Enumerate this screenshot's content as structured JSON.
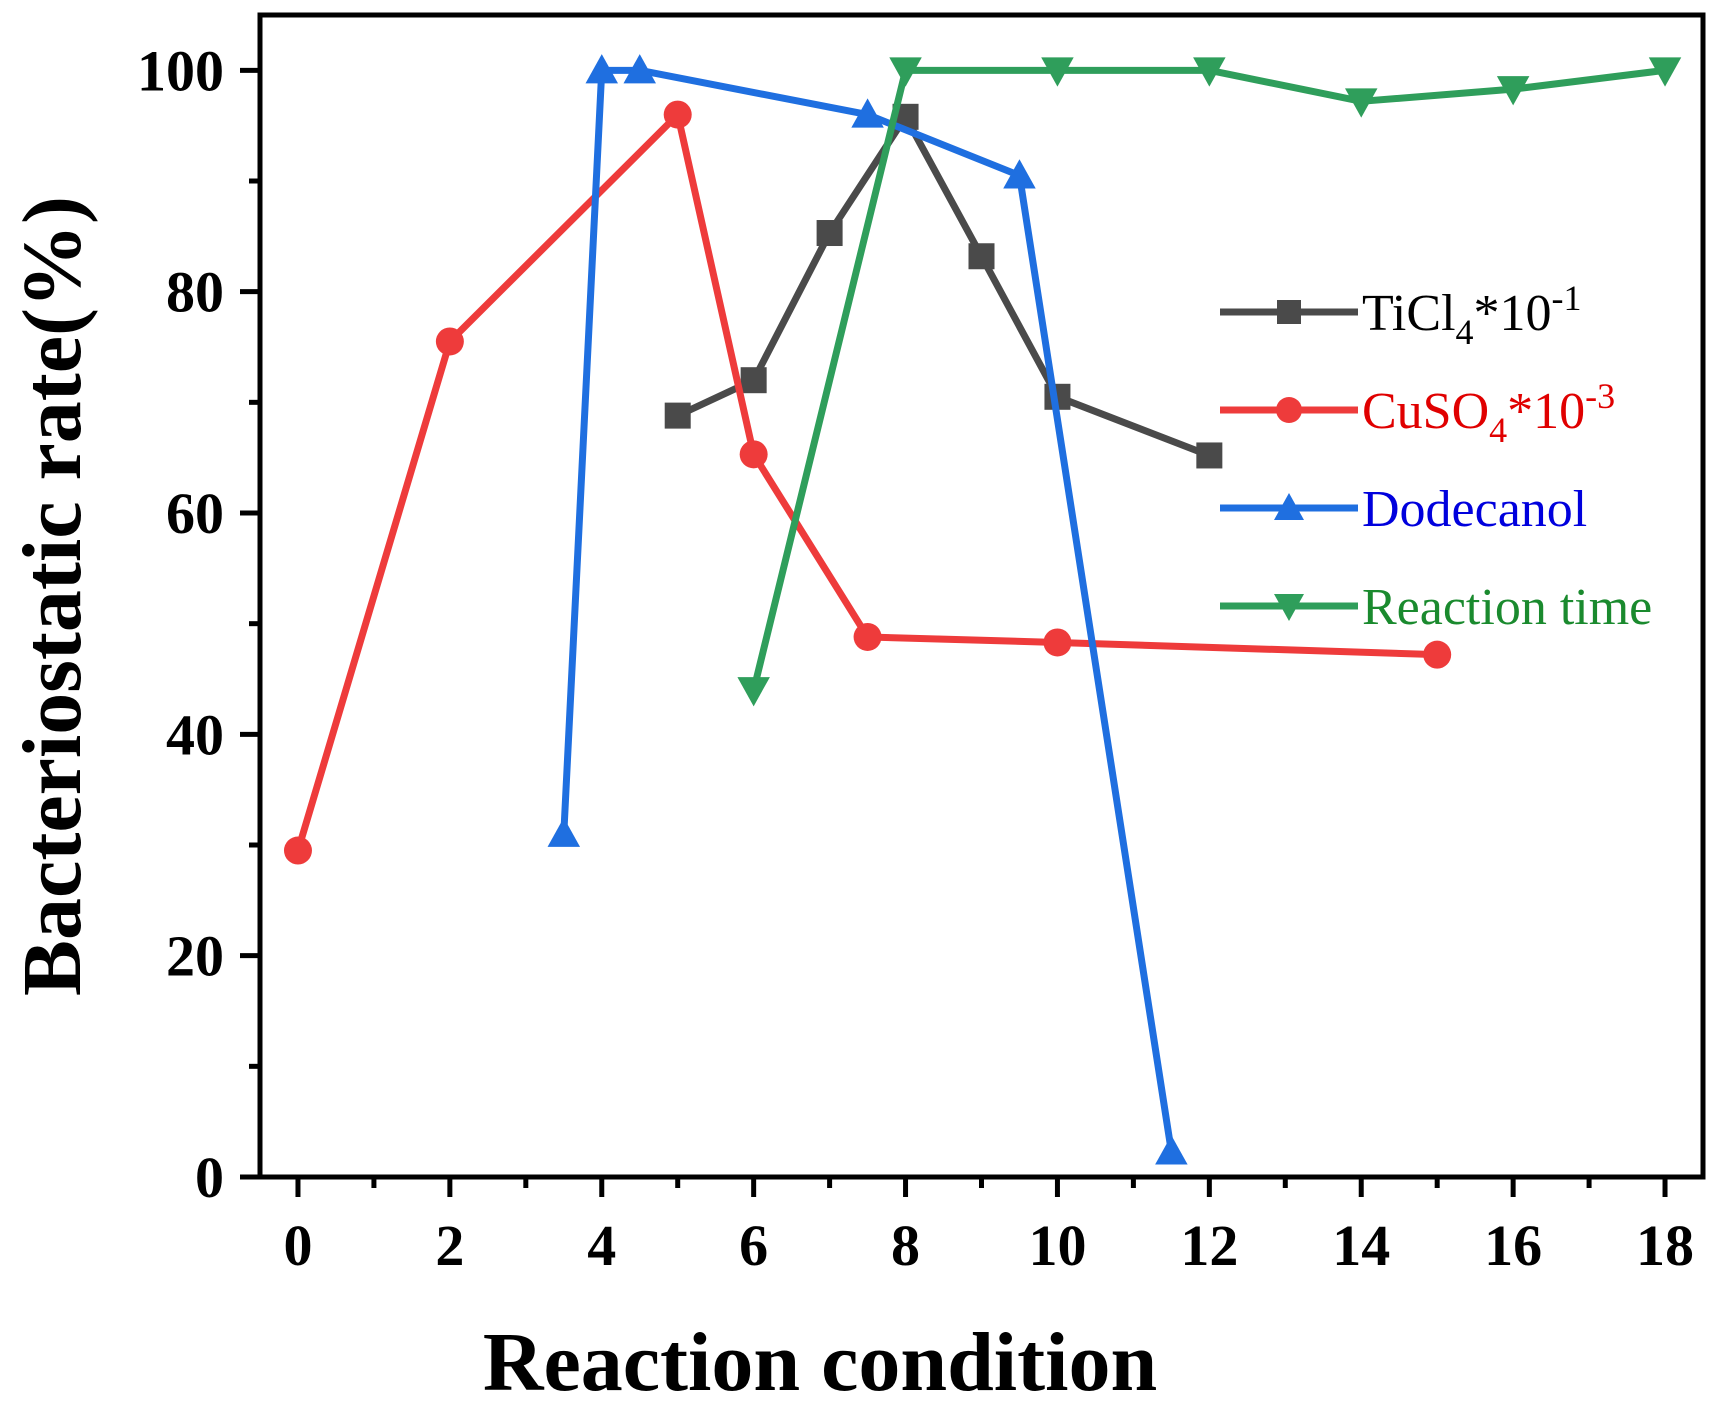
{
  "chart_data": {
    "type": "line",
    "xlabel": "Reaction condition",
    "ylabel": "Bacteriostatic rate(%)",
    "xlim": [
      -0.5,
      18.5
    ],
    "ylim": [
      0,
      105
    ],
    "xticks": [
      0,
      2,
      4,
      6,
      8,
      10,
      12,
      14,
      16,
      18
    ],
    "yticks": [
      0,
      20,
      40,
      60,
      80,
      100
    ],
    "grid": false,
    "legend_position": "right",
    "series": [
      {
        "name": "TiCl4*10-1",
        "legend": {
          "base": "TiCl",
          "sub": "4",
          "mid": "*10",
          "sup": "-1"
        },
        "color": "#4a4a4a",
        "marker": "square",
        "x": [
          5,
          6,
          7,
          8,
          9,
          10,
          12
        ],
        "y": [
          68.8,
          72,
          85.3,
          95.8,
          83.2,
          70.5,
          65.2
        ]
      },
      {
        "name": "CuSO4*10-3",
        "legend": {
          "base": "CuSO",
          "sub": "4",
          "mid": "*10",
          "sup": "-3"
        },
        "color": "#ee3b3b",
        "marker": "circle",
        "x": [
          0,
          2,
          5,
          6,
          7.5,
          10,
          15
        ],
        "y": [
          29.5,
          75.5,
          96,
          65.3,
          48.8,
          48.3,
          47.2
        ]
      },
      {
        "name": "Dodecanol",
        "legend": {
          "base": "Dodecanol",
          "sub": "",
          "mid": "",
          "sup": ""
        },
        "color": "#1f6fe0",
        "marker": "triangle-up",
        "x": [
          3.5,
          4,
          4.5,
          7.5,
          9.5,
          11.5
        ],
        "y": [
          31,
          100,
          100,
          96,
          90.5,
          2.3
        ]
      },
      {
        "name": "Reaction time",
        "legend": {
          "base": "Reaction time",
          "sub": "",
          "mid": "",
          "sup": ""
        },
        "color": "#2f9e5b",
        "marker": "triangle-down",
        "x": [
          6,
          8,
          10,
          12,
          14,
          16,
          18
        ],
        "y": [
          44,
          100,
          100,
          100,
          97.2,
          98.3,
          100
        ]
      }
    ],
    "legend_text_colors": [
      "#000000",
      "#e00000",
      "#0000dd",
      "#1a8a2e"
    ]
  }
}
